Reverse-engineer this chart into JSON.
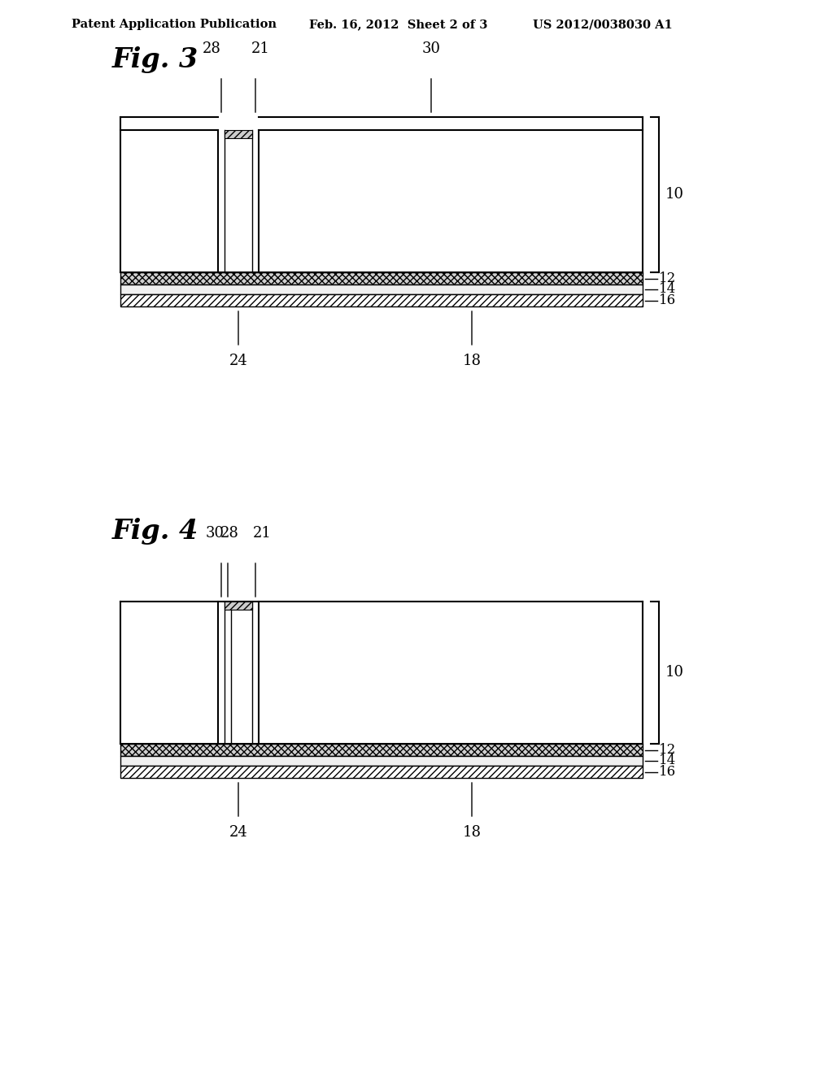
{
  "bg_color": "#ffffff",
  "header_left": "Patent Application Publication",
  "header_mid": "Feb. 16, 2012  Sheet 2 of 3",
  "header_right": "US 2012/0038030 A1",
  "fig3_label": "Fig. 3",
  "fig4_label": "Fig. 4"
}
